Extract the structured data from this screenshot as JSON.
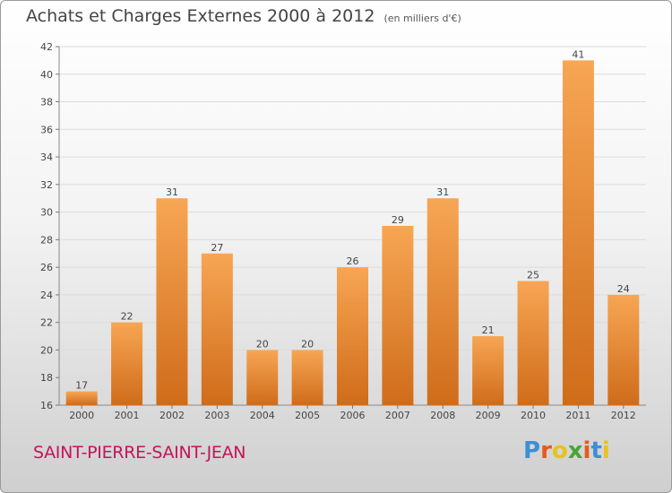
{
  "header": {
    "title": "Achats et Charges Externes 2000 à 2012",
    "subtitle": "(en milliers d'€)"
  },
  "footer": {
    "location": "SAINT-PIERRE-SAINT-JEAN",
    "logo_text": "Proxiti",
    "logo_colors": [
      "#3d8fd4",
      "#e65a1b",
      "#e8c21a",
      "#4aa338",
      "#e65a1b",
      "#3d8fd4",
      "#e8c21a"
    ]
  },
  "chart_data": {
    "type": "bar",
    "categories": [
      "2000",
      "2001",
      "2002",
      "2003",
      "2004",
      "2005",
      "2006",
      "2007",
      "2008",
      "2009",
      "2010",
      "2011",
      "2012"
    ],
    "values": [
      17,
      22,
      31,
      27,
      20,
      20,
      26,
      29,
      31,
      21,
      25,
      41,
      24
    ],
    "data_labels": [
      "17",
      "22",
      "31",
      "27",
      "20",
      "20",
      "26",
      "29",
      "31",
      "21",
      "25",
      "41",
      "24"
    ],
    "ylim": [
      16,
      42
    ],
    "y_ticks": [
      16,
      18,
      20,
      22,
      24,
      26,
      28,
      30,
      32,
      34,
      36,
      38,
      40,
      42
    ],
    "grid": true,
    "bar_color": "#f0913a"
  }
}
